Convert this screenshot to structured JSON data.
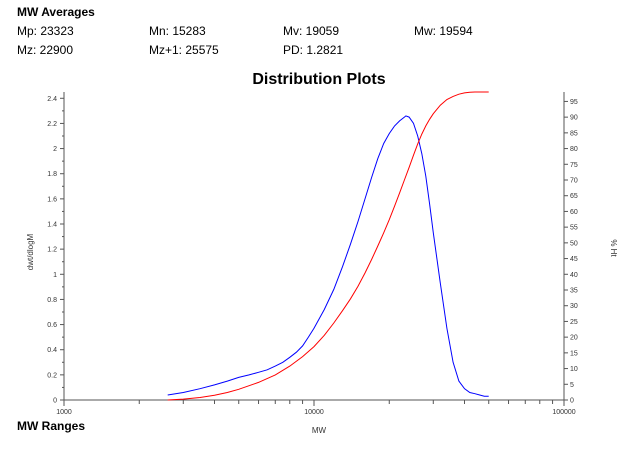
{
  "averages": {
    "title": "MW Averages",
    "row1": [
      "Mp: 23323",
      "Mn: 15283",
      "Mv: 19059",
      "Mw: 19594"
    ],
    "row2": [
      "Mz: 22900",
      "Mz+1: 25575",
      "PD: 1.2821"
    ]
  },
  "ranges": {
    "title": "MW Ranges"
  },
  "chart_data": {
    "type": "line",
    "title": "Distribution Plots",
    "xlabel": "MW",
    "ylabel": "dwt/dlogM",
    "y2label": "% Ht",
    "xscale": "log",
    "xlim": [
      1000,
      100000
    ],
    "ylim": [
      0,
      2.45
    ],
    "y2lim": [
      0,
      98
    ],
    "x_tick_labels": [
      "1000",
      "10000",
      "100000"
    ],
    "y_tick_labels": [
      "0",
      "0.2",
      "0.4",
      "0.6",
      "0.8",
      "1",
      "1.2",
      "1.4",
      "1.6",
      "1.8",
      "2",
      "2.2",
      "2.4"
    ],
    "y2_tick_labels": [
      "0",
      "5",
      "10",
      "15",
      "20",
      "25",
      "30",
      "35",
      "40",
      "45",
      "50",
      "55",
      "60",
      "65",
      "70",
      "75",
      "80",
      "85",
      "90",
      "95"
    ],
    "grid": false,
    "series": [
      {
        "color": "#0000ff",
        "axis": "left",
        "x": [
          2600,
          3000,
          3500,
          4000,
          4500,
          5000,
          5500,
          6000,
          6500,
          7000,
          7500,
          8000,
          8500,
          9000,
          9500,
          10000,
          11000,
          12000,
          13000,
          14000,
          15000,
          16000,
          17000,
          18000,
          19000,
          20000,
          21000,
          22000,
          23000,
          23323,
          24000,
          25000,
          26000,
          27000,
          28000,
          29000,
          30000,
          32000,
          34000,
          36000,
          38000,
          40000,
          42000,
          44000,
          46000,
          48000,
          50000
        ],
        "y": [
          0.04,
          0.06,
          0.09,
          0.12,
          0.15,
          0.18,
          0.2,
          0.22,
          0.24,
          0.27,
          0.3,
          0.34,
          0.38,
          0.43,
          0.5,
          0.57,
          0.72,
          0.88,
          1.06,
          1.24,
          1.42,
          1.6,
          1.77,
          1.92,
          2.04,
          2.12,
          2.18,
          2.22,
          2.25,
          2.26,
          2.25,
          2.2,
          2.1,
          1.96,
          1.78,
          1.56,
          1.33,
          0.93,
          0.57,
          0.3,
          0.15,
          0.09,
          0.06,
          0.05,
          0.04,
          0.03,
          0.03
        ]
      },
      {
        "color": "#ff0000",
        "axis": "right",
        "x": [
          2600,
          3000,
          3500,
          4000,
          4500,
          5000,
          6000,
          7000,
          8000,
          9000,
          10000,
          11000,
          12000,
          13000,
          14000,
          15000,
          16000,
          17000,
          18000,
          19000,
          20000,
          21000,
          22000,
          23000,
          24000,
          25000,
          26000,
          27000,
          28000,
          29000,
          30000,
          32000,
          34000,
          36000,
          38000,
          40000,
          42000,
          44000,
          46000,
          48000,
          50000
        ],
        "y": [
          0,
          0.3,
          0.8,
          1.5,
          2.4,
          3.4,
          5.6,
          8.0,
          10.8,
          13.8,
          17.0,
          20.6,
          24.5,
          28.4,
          32.2,
          36.2,
          40.4,
          44.7,
          49.0,
          53.2,
          57.4,
          61.7,
          65.9,
          70.0,
          74.0,
          77.9,
          81.5,
          84.6,
          87.2,
          89.3,
          91.1,
          93.8,
          95.6,
          96.6,
          97.3,
          97.7,
          97.9,
          98.0,
          98.0,
          98.0,
          98.0
        ]
      }
    ]
  }
}
